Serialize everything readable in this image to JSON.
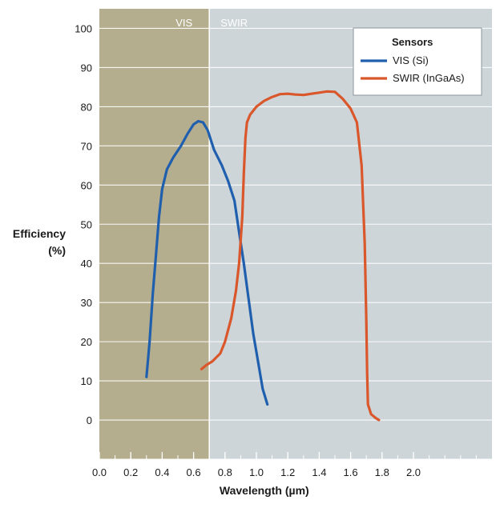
{
  "chart_data": {
    "type": "line",
    "xlabel": "Wavelength (µm)",
    "ylabel_line1": "Efficiency",
    "ylabel_line2": "(%)",
    "xlim": [
      0.0,
      2.5
    ],
    "ylim": [
      -10,
      105
    ],
    "x_ticks": [
      0.0,
      0.2,
      0.4,
      0.6,
      0.8,
      1.0,
      1.2,
      1.4,
      1.6,
      1.8,
      2.0
    ],
    "x_tick_labels": [
      "0.0",
      "0.2",
      "0.4",
      "0.6",
      "0.8",
      "1.0",
      "1.2",
      "1.4",
      "1.6",
      "1.8",
      "2.0"
    ],
    "y_ticks": [
      0,
      10,
      20,
      30,
      40,
      50,
      60,
      70,
      80,
      90,
      100
    ],
    "y_tick_labels": [
      "0",
      "10",
      "20",
      "30",
      "40",
      "50",
      "60",
      "70",
      "80",
      "90",
      "100"
    ],
    "grid": true,
    "regions": [
      {
        "label": "VIS",
        "x_range": [
          0.0,
          0.7
        ],
        "color": "#b5ae8e"
      },
      {
        "label": "SWIR",
        "x_range": [
          0.7,
          2.5
        ],
        "color": "#cdd5d9"
      }
    ],
    "legend": {
      "title": "Sensors",
      "placement": "top-right"
    },
    "series": [
      {
        "name": "VIS (Si)",
        "color": "#1f5fae",
        "points": [
          [
            0.3,
            11
          ],
          [
            0.32,
            20
          ],
          [
            0.34,
            32
          ],
          [
            0.36,
            42
          ],
          [
            0.38,
            52
          ],
          [
            0.4,
            59
          ],
          [
            0.43,
            64
          ],
          [
            0.47,
            67
          ],
          [
            0.52,
            70
          ],
          [
            0.56,
            73
          ],
          [
            0.6,
            75.5
          ],
          [
            0.63,
            76.3
          ],
          [
            0.66,
            76
          ],
          [
            0.69,
            74
          ],
          [
            0.73,
            69
          ],
          [
            0.78,
            65
          ],
          [
            0.82,
            61
          ],
          [
            0.86,
            56
          ],
          [
            0.89,
            48
          ],
          [
            0.92,
            40
          ],
          [
            0.95,
            31
          ],
          [
            0.98,
            22
          ],
          [
            1.01,
            15
          ],
          [
            1.04,
            8
          ],
          [
            1.07,
            4
          ]
        ]
      },
      {
        "name": "SWIR (InGaAs)",
        "color": "#d9572b",
        "points": [
          [
            0.65,
            13
          ],
          [
            0.68,
            14
          ],
          [
            0.72,
            15
          ],
          [
            0.77,
            17
          ],
          [
            0.8,
            20
          ],
          [
            0.84,
            26
          ],
          [
            0.87,
            33
          ],
          [
            0.89,
            40
          ],
          [
            0.91,
            52
          ],
          [
            0.92,
            63
          ],
          [
            0.93,
            72
          ],
          [
            0.94,
            76
          ],
          [
            0.96,
            78
          ],
          [
            1.0,
            80
          ],
          [
            1.05,
            81.5
          ],
          [
            1.1,
            82.5
          ],
          [
            1.15,
            83.2
          ],
          [
            1.2,
            83.3
          ],
          [
            1.25,
            83.1
          ],
          [
            1.3,
            83
          ],
          [
            1.35,
            83.3
          ],
          [
            1.4,
            83.6
          ],
          [
            1.45,
            83.9
          ],
          [
            1.5,
            83.8
          ],
          [
            1.55,
            82
          ],
          [
            1.6,
            79.5
          ],
          [
            1.64,
            76
          ],
          [
            1.67,
            65
          ],
          [
            1.69,
            45
          ],
          [
            1.7,
            25
          ],
          [
            1.705,
            12
          ],
          [
            1.71,
            4
          ],
          [
            1.73,
            1.5
          ],
          [
            1.76,
            0.5
          ],
          [
            1.78,
            0
          ]
        ]
      }
    ]
  }
}
